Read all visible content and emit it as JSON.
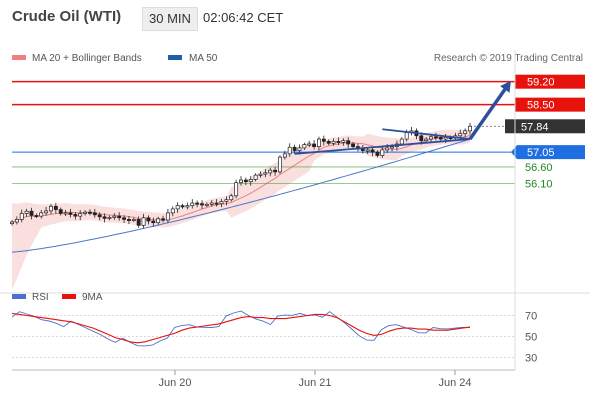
{
  "header": {
    "title": "Crude Oil (WTI)",
    "timeframe": "30 MIN",
    "time": "02:06:42 CET"
  },
  "legend": {
    "ma20_label": "MA 20 + Bollinger Bands",
    "ma20_color": "#f08080",
    "ma50_label": "MA 50",
    "ma50_color": "#1e5fa6",
    "copyright": "Research © 2019 Trading Central"
  },
  "levels": [
    {
      "label": "59.20",
      "value": 59.2,
      "kind": "resistance",
      "color": "#e8120c"
    },
    {
      "label": "58.50",
      "value": 58.5,
      "kind": "resistance",
      "color": "#e8120c"
    },
    {
      "label": "57.84",
      "value": 57.84,
      "kind": "last",
      "color": "#333333"
    },
    {
      "label": "57.05",
      "value": 57.05,
      "kind": "pivot",
      "color": "#1f6fe0"
    },
    {
      "label": "56.60",
      "value": 56.6,
      "kind": "support",
      "color": "#1f8a1f"
    },
    {
      "label": "56.10",
      "value": 56.1,
      "kind": "support",
      "color": "#1f8a1f"
    }
  ],
  "rsi_legend": {
    "rsi_label": "RSI",
    "rsi_color": "#4a6fd0",
    "ma_label": "9MA",
    "ma_color": "#e8120c"
  },
  "rsi_ticks": [
    "70",
    "50",
    "30"
  ],
  "x_ticks": [
    "Jun 20",
    "Jun 21",
    "Jun 24"
  ],
  "chart_data": [
    {
      "type": "candlestick",
      "title": "Crude Oil (WTI)",
      "timeframe": "30 MIN",
      "x_ticks": [
        "Jun 20",
        "Jun 21",
        "Jun 24"
      ],
      "ylim": [
        53.0,
        59.8
      ],
      "series_close_approx": [
        54.92,
        55.0,
        55.18,
        55.25,
        55.12,
        55.1,
        55.2,
        55.26,
        55.4,
        55.3,
        55.18,
        55.2,
        55.15,
        55.1,
        55.18,
        55.22,
        55.2,
        55.14,
        55.08,
        55.03,
        55.06,
        55.1,
        55.05,
        55.0,
        54.98,
        55.0,
        54.82,
        55.05,
        54.95,
        54.9,
        55.02,
        54.98,
        55.2,
        55.32,
        55.42,
        55.38,
        55.42,
        55.5,
        55.48,
        55.44,
        55.46,
        55.5,
        55.48,
        55.55,
        55.6,
        55.72,
        56.12,
        56.2,
        56.15,
        56.22,
        56.35,
        56.38,
        56.42,
        56.5,
        56.45,
        56.9,
        57.0,
        57.2,
        57.1,
        57.18,
        57.28,
        57.3,
        57.22,
        57.45,
        57.38,
        57.32,
        57.38,
        57.35,
        57.4,
        57.3,
        57.22,
        57.15,
        57.1,
        57.12,
        57.05,
        56.95,
        57.12,
        57.18,
        57.22,
        57.3,
        57.45,
        57.65,
        57.7,
        57.55,
        57.4,
        57.45,
        57.52,
        57.5,
        57.45,
        57.5,
        57.48,
        57.55,
        57.62,
        57.7,
        57.84
      ],
      "ma50": {
        "name": "MA 50",
        "from": 54.0,
        "to": 57.45
      },
      "ma20": {
        "name": "MA 20 + Bollinger Bands"
      },
      "levels": [
        59.2,
        58.5,
        57.84,
        57.05,
        56.6,
        56.1
      ],
      "projection": {
        "from": 57.45,
        "to": 59.1
      }
    },
    {
      "type": "line",
      "title": "RSI",
      "yticks": [
        70,
        50,
        30
      ],
      "series": [
        {
          "name": "RSI",
          "values": [
            72,
            70,
            69,
            68,
            66,
            66,
            65,
            63,
            61,
            59,
            57,
            55,
            53,
            50,
            48,
            45,
            42,
            40,
            41,
            43,
            48,
            52,
            55,
            58,
            60,
            59,
            60,
            61,
            63,
            66,
            70,
            73,
            70,
            68,
            67,
            65,
            66,
            68,
            69,
            72,
            71,
            73,
            72,
            70,
            66,
            62,
            57,
            52,
            49,
            50,
            53,
            58,
            60,
            59,
            58,
            56,
            57,
            55,
            55,
            56,
            58,
            60,
            61
          ]
        },
        {
          "name": "9MA",
          "values": [
            72,
            71,
            70,
            69,
            68,
            67,
            66,
            65,
            64,
            62,
            60,
            58,
            55,
            52,
            49,
            47,
            45,
            44,
            45,
            47,
            49,
            51,
            53,
            56,
            58,
            59,
            60,
            61,
            62,
            64,
            66,
            68,
            69,
            68,
            68,
            67,
            67,
            67,
            68,
            69,
            70,
            71,
            71,
            70,
            68,
            64,
            60,
            56,
            53,
            51,
            52,
            55,
            57,
            58,
            58,
            57,
            57,
            56,
            56,
            56,
            57,
            58,
            59
          ]
        }
      ]
    }
  ]
}
